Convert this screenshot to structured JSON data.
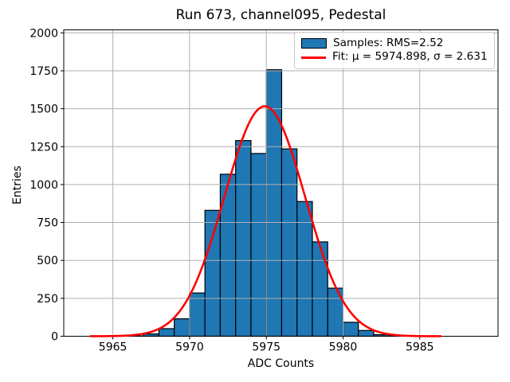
{
  "figure": {
    "title": "Run 673, channel095, Pedestal",
    "xlabel": "ADC Counts",
    "ylabel": "Entries",
    "background": "#ffffff"
  },
  "legend": {
    "position": "upper right",
    "border_color": "#cccccc",
    "items": [
      {
        "swatch": "patch",
        "label": "Samples: RMS=2.52",
        "fill": "#1f77b4",
        "edge": "#000000"
      },
      {
        "swatch": "line",
        "label": "Fit: μ = 5974.898, σ = 2.631",
        "stroke": "#ff0000"
      }
    ]
  },
  "chart_data": {
    "type": "bar",
    "subtype": "histogram",
    "title": "Run 673, channel095, Pedestal",
    "xlabel": "ADC Counts",
    "ylabel": "Entries",
    "grid": true,
    "grid_color": "#b0b0b0",
    "legend_position": "upper right",
    "xlim": [
      5961.8,
      5990.1
    ],
    "ylim": [
      0,
      2020
    ],
    "x_ticks": [
      5965,
      5970,
      5975,
      5980,
      5985
    ],
    "y_ticks": [
      0,
      250,
      500,
      750,
      1000,
      1250,
      1500,
      1750,
      2000
    ],
    "bar_color": "#1f77b4",
    "bar_edge_color": "#000000",
    "histogram": {
      "bin_width": 1,
      "bin_left_edges": [
        5966,
        5967,
        5968,
        5969,
        5970,
        5971,
        5972,
        5973,
        5974,
        5975,
        5976,
        5977,
        5978,
        5979,
        5980,
        5981,
        5982,
        5983
      ],
      "counts": [
        2,
        15,
        50,
        115,
        285,
        830,
        1068,
        1290,
        1205,
        1757,
        1235,
        888,
        622,
        317,
        92,
        38,
        10,
        3
      ],
      "rms": 2.52
    },
    "fit": {
      "type": "gaussian",
      "mu": 5974.898,
      "sigma": 2.631,
      "amplitude": 1516,
      "x_range": [
        5963.55,
        5986.4
      ],
      "color": "#ff0000",
      "line_width": 2.6
    }
  }
}
